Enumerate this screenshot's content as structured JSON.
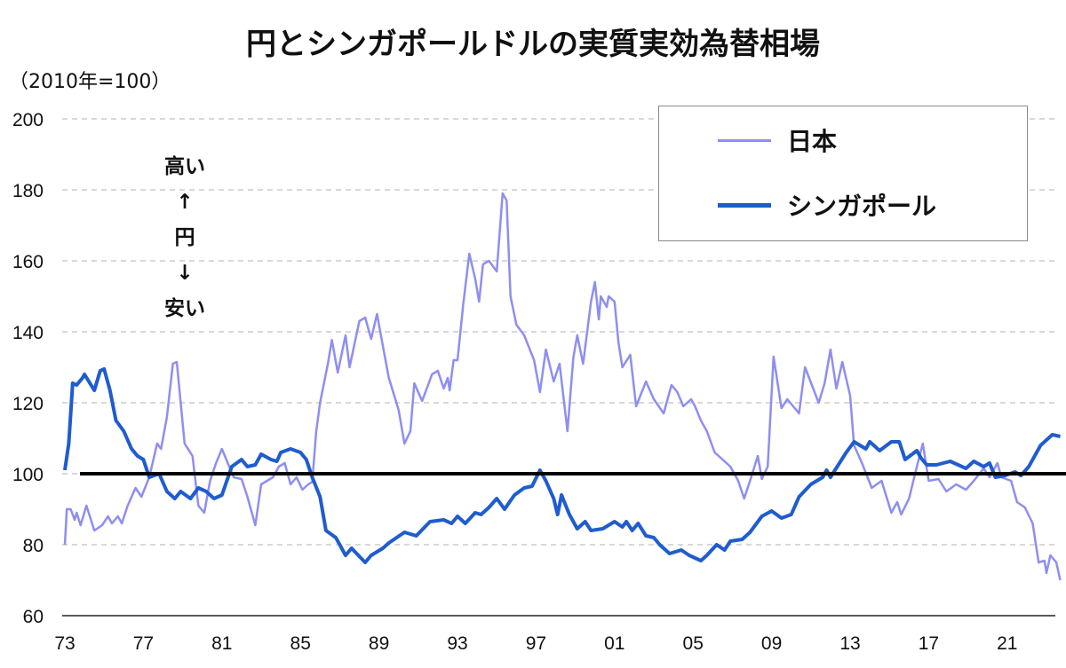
{
  "title": "円とシンガポールドルの実質実効為替相場",
  "unit_label": "（2010年=100）",
  "annotation": {
    "top": "高い",
    "arrow_up": "↑",
    "middle": "円",
    "arrow_down": "↓",
    "bottom": "安い"
  },
  "colors": {
    "japan": "#8e8ef2",
    "singapore": "#1f5ccf",
    "reference": "#000000",
    "grid": "#b0b0b0"
  },
  "chart_data": {
    "type": "line",
    "title": "円とシンガポールドルの実質実効為替相場",
    "ylabel": "（2010年=100）",
    "ylim": [
      60,
      200
    ],
    "yticks": [
      60,
      80,
      100,
      120,
      140,
      160,
      180,
      200
    ],
    "xlim": [
      1973,
      2023.8
    ],
    "xticks": [
      {
        "year": 1973,
        "label": "73"
      },
      {
        "year": 1977,
        "label": "77"
      },
      {
        "year": 1981,
        "label": "81"
      },
      {
        "year": 1985,
        "label": "85"
      },
      {
        "year": 1989,
        "label": "89"
      },
      {
        "year": 1993,
        "label": "93"
      },
      {
        "year": 1997,
        "label": "97"
      },
      {
        "year": 2001,
        "label": "01"
      },
      {
        "year": 2005,
        "label": "05"
      },
      {
        "year": 2009,
        "label": "09"
      },
      {
        "year": 2013,
        "label": "13"
      },
      {
        "year": 2017,
        "label": "17"
      },
      {
        "year": 2021,
        "label": "21"
      }
    ],
    "grid": "horizontal-dashed",
    "legend_position": "top-right",
    "reference_line": {
      "value": 100
    },
    "series": [
      {
        "name": "日本",
        "key": "japan",
        "points": [
          [
            1973.0,
            80
          ],
          [
            1973.1,
            90
          ],
          [
            1973.3,
            90
          ],
          [
            1973.5,
            87
          ],
          [
            1973.6,
            89
          ],
          [
            1973.8,
            85.5
          ],
          [
            1974.1,
            91
          ],
          [
            1974.5,
            84
          ],
          [
            1974.9,
            85.5
          ],
          [
            1975.2,
            88
          ],
          [
            1975.4,
            86
          ],
          [
            1975.7,
            88
          ],
          [
            1975.9,
            86
          ],
          [
            1976.2,
            91
          ],
          [
            1976.6,
            96
          ],
          [
            1976.9,
            93.5
          ],
          [
            1977.3,
            99
          ],
          [
            1977.7,
            108.5
          ],
          [
            1977.9,
            107
          ],
          [
            1978.2,
            116
          ],
          [
            1978.5,
            131
          ],
          [
            1978.7,
            131.5
          ],
          [
            1979.1,
            108.5
          ],
          [
            1979.5,
            105
          ],
          [
            1979.8,
            91
          ],
          [
            1980.1,
            89
          ],
          [
            1980.4,
            98
          ],
          [
            1980.7,
            103
          ],
          [
            1981.0,
            107
          ],
          [
            1981.3,
            103
          ],
          [
            1981.6,
            99
          ],
          [
            1982.0,
            98.5
          ],
          [
            1982.3,
            93.5
          ],
          [
            1982.7,
            85.5
          ],
          [
            1983.0,
            97
          ],
          [
            1983.3,
            98
          ],
          [
            1983.6,
            99
          ],
          [
            1983.9,
            102
          ],
          [
            1984.2,
            103
          ],
          [
            1984.5,
            97
          ],
          [
            1984.8,
            99
          ],
          [
            1985.1,
            95.5
          ],
          [
            1985.4,
            97
          ],
          [
            1985.6,
            97.7
          ],
          [
            1985.8,
            111.8
          ],
          [
            1986.0,
            120
          ],
          [
            1986.4,
            131
          ],
          [
            1986.6,
            137.7
          ],
          [
            1986.9,
            128.5
          ],
          [
            1987.3,
            139
          ],
          [
            1987.5,
            130
          ],
          [
            1988.0,
            143
          ],
          [
            1988.3,
            144
          ],
          [
            1988.6,
            138
          ],
          [
            1988.9,
            145
          ],
          [
            1989.2,
            136
          ],
          [
            1989.5,
            127
          ],
          [
            1990.0,
            118
          ],
          [
            1990.3,
            108.5
          ],
          [
            1990.6,
            112
          ],
          [
            1990.8,
            125.5
          ],
          [
            1991.2,
            120.5
          ],
          [
            1991.7,
            128
          ],
          [
            1992.0,
            129
          ],
          [
            1992.3,
            124
          ],
          [
            1992.5,
            127
          ],
          [
            1992.6,
            123.5
          ],
          [
            1992.8,
            132
          ],
          [
            1993.0,
            132
          ],
          [
            1993.3,
            148
          ],
          [
            1993.6,
            162
          ],
          [
            1993.9,
            155
          ],
          [
            1994.1,
            148.5
          ],
          [
            1994.3,
            159
          ],
          [
            1994.6,
            160
          ],
          [
            1995.0,
            157
          ],
          [
            1995.3,
            179
          ],
          [
            1995.5,
            177
          ],
          [
            1995.7,
            150
          ],
          [
            1996.0,
            142
          ],
          [
            1996.4,
            139
          ],
          [
            1996.9,
            132
          ],
          [
            1997.2,
            123
          ],
          [
            1997.5,
            135
          ],
          [
            1997.9,
            126
          ],
          [
            1998.2,
            131
          ],
          [
            1998.6,
            112
          ],
          [
            1998.9,
            132.7
          ],
          [
            1999.1,
            139
          ],
          [
            1999.4,
            131
          ],
          [
            1999.8,
            148.5
          ],
          [
            2000.0,
            154
          ],
          [
            2000.2,
            143.5
          ],
          [
            2000.3,
            150
          ],
          [
            2000.6,
            147
          ],
          [
            2000.7,
            150
          ],
          [
            2001.0,
            148.5
          ],
          [
            2001.2,
            137
          ],
          [
            2001.4,
            130
          ],
          [
            2001.8,
            133.5
          ],
          [
            2002.1,
            119
          ],
          [
            2002.6,
            126
          ],
          [
            2003.0,
            121
          ],
          [
            2003.5,
            117
          ],
          [
            2003.9,
            125
          ],
          [
            2004.2,
            123
          ],
          [
            2004.5,
            119
          ],
          [
            2004.9,
            121
          ],
          [
            2005.1,
            119
          ],
          [
            2005.4,
            115
          ],
          [
            2005.7,
            112
          ],
          [
            2006.1,
            106
          ],
          [
            2006.5,
            104
          ],
          [
            2006.9,
            102
          ],
          [
            2007.3,
            98
          ],
          [
            2007.6,
            93
          ],
          [
            2007.9,
            98
          ],
          [
            2008.3,
            105
          ],
          [
            2008.5,
            98.5
          ],
          [
            2008.8,
            102
          ],
          [
            2009.1,
            133
          ],
          [
            2009.5,
            118.5
          ],
          [
            2009.8,
            121
          ],
          [
            2010.4,
            117
          ],
          [
            2010.7,
            130
          ],
          [
            2011.4,
            120
          ],
          [
            2011.7,
            125.5
          ],
          [
            2012.0,
            135
          ],
          [
            2012.3,
            124
          ],
          [
            2012.6,
            131.5
          ],
          [
            2013.0,
            122
          ],
          [
            2013.2,
            108
          ],
          [
            2013.6,
            103
          ],
          [
            2014.1,
            96
          ],
          [
            2014.6,
            98
          ],
          [
            2015.1,
            89
          ],
          [
            2015.4,
            92
          ],
          [
            2015.6,
            88.5
          ],
          [
            2016.0,
            93
          ],
          [
            2016.4,
            102
          ],
          [
            2016.7,
            108.5
          ],
          [
            2017.0,
            98
          ],
          [
            2017.5,
            98.5
          ],
          [
            2017.9,
            95
          ],
          [
            2018.4,
            97
          ],
          [
            2018.9,
            95.5
          ],
          [
            2019.3,
            98
          ],
          [
            2019.8,
            101.5
          ],
          [
            2020.1,
            99
          ],
          [
            2020.5,
            103
          ],
          [
            2020.7,
            99
          ],
          [
            2021.2,
            98
          ],
          [
            2021.5,
            92
          ],
          [
            2021.9,
            90.5
          ],
          [
            2022.3,
            86
          ],
          [
            2022.6,
            75
          ],
          [
            2022.9,
            75.5
          ],
          [
            2023.0,
            72
          ],
          [
            2023.2,
            77
          ],
          [
            2023.5,
            75
          ],
          [
            2023.7,
            70
          ]
        ]
      },
      {
        "name": "シンガポール",
        "key": "singapore",
        "points": [
          [
            1973.0,
            101
          ],
          [
            1973.2,
            108.5
          ],
          [
            1973.4,
            125.5
          ],
          [
            1973.6,
            125
          ],
          [
            1973.9,
            127
          ],
          [
            1974.0,
            128
          ],
          [
            1974.5,
            123.5
          ],
          [
            1974.8,
            129
          ],
          [
            1975.0,
            129.5
          ],
          [
            1975.3,
            123.5
          ],
          [
            1975.6,
            115
          ],
          [
            1976.0,
            112
          ],
          [
            1976.4,
            107
          ],
          [
            1976.7,
            105
          ],
          [
            1977.0,
            104
          ],
          [
            1977.3,
            99
          ],
          [
            1977.8,
            100
          ],
          [
            1978.2,
            95
          ],
          [
            1978.6,
            93
          ],
          [
            1978.9,
            95
          ],
          [
            1979.4,
            93
          ],
          [
            1979.8,
            96
          ],
          [
            1980.2,
            95
          ],
          [
            1980.6,
            93
          ],
          [
            1981.0,
            94
          ],
          [
            1981.5,
            102
          ],
          [
            1982.0,
            104
          ],
          [
            1982.3,
            102
          ],
          [
            1982.7,
            102.5
          ],
          [
            1983.0,
            105.5
          ],
          [
            1983.5,
            104
          ],
          [
            1983.8,
            103.5
          ],
          [
            1984.0,
            106
          ],
          [
            1984.5,
            107
          ],
          [
            1985.0,
            106
          ],
          [
            1985.3,
            104
          ],
          [
            1985.6,
            99
          ],
          [
            1986.0,
            93.5
          ],
          [
            1986.3,
            84
          ],
          [
            1986.8,
            82
          ],
          [
            1987.3,
            77
          ],
          [
            1987.6,
            79
          ],
          [
            1988.3,
            75
          ],
          [
            1988.6,
            77
          ],
          [
            1989.2,
            79
          ],
          [
            1989.5,
            80.5
          ],
          [
            1990.3,
            83.5
          ],
          [
            1990.9,
            82.5
          ],
          [
            1991.6,
            86.5
          ],
          [
            1992.3,
            87
          ],
          [
            1992.7,
            86
          ],
          [
            1993.0,
            88
          ],
          [
            1993.4,
            86
          ],
          [
            1993.9,
            89
          ],
          [
            1994.2,
            88.5
          ],
          [
            1994.6,
            90.5
          ],
          [
            1995.0,
            93
          ],
          [
            1995.4,
            90
          ],
          [
            1995.9,
            94
          ],
          [
            1996.4,
            96
          ],
          [
            1996.8,
            96.5
          ],
          [
            1997.2,
            101
          ],
          [
            1997.5,
            98
          ],
          [
            1997.9,
            93
          ],
          [
            1998.1,
            88.5
          ],
          [
            1998.3,
            94
          ],
          [
            1998.7,
            88.5
          ],
          [
            1999.1,
            84.5
          ],
          [
            1999.5,
            86.5
          ],
          [
            1999.8,
            84
          ],
          [
            2000.4,
            84.5
          ],
          [
            2001.0,
            86.5
          ],
          [
            2001.4,
            85
          ],
          [
            2001.6,
            86.5
          ],
          [
            2001.9,
            84
          ],
          [
            2002.2,
            86
          ],
          [
            2002.6,
            82.5
          ],
          [
            2003.0,
            82
          ],
          [
            2003.3,
            80
          ],
          [
            2003.8,
            77.5
          ],
          [
            2004.4,
            78.5
          ],
          [
            2004.8,
            77
          ],
          [
            2005.4,
            75.5
          ],
          [
            2005.7,
            77
          ],
          [
            2006.2,
            80
          ],
          [
            2006.6,
            78.5
          ],
          [
            2006.9,
            81
          ],
          [
            2007.5,
            81.5
          ],
          [
            2007.9,
            83.5
          ],
          [
            2008.5,
            88
          ],
          [
            2009.0,
            89.5
          ],
          [
            2009.5,
            87.5
          ],
          [
            2010.0,
            88.5
          ],
          [
            2010.4,
            93.5
          ],
          [
            2011.0,
            97
          ],
          [
            2011.6,
            99
          ],
          [
            2011.8,
            101
          ],
          [
            2012.0,
            99
          ],
          [
            2012.4,
            102.5
          ],
          [
            2012.8,
            106
          ],
          [
            2013.2,
            109
          ],
          [
            2013.8,
            107
          ],
          [
            2014.0,
            109
          ],
          [
            2014.5,
            106.5
          ],
          [
            2015.1,
            109
          ],
          [
            2015.5,
            109
          ],
          [
            2015.8,
            104
          ],
          [
            2016.4,
            106.5
          ],
          [
            2016.6,
            104.5
          ],
          [
            2016.9,
            102.5
          ],
          [
            2017.4,
            102.5
          ],
          [
            2018.1,
            103.5
          ],
          [
            2018.9,
            101.5
          ],
          [
            2019.3,
            103.5
          ],
          [
            2019.8,
            102
          ],
          [
            2020.1,
            103
          ],
          [
            2020.4,
            99
          ],
          [
            2020.9,
            99.5
          ],
          [
            2021.4,
            100.5
          ],
          [
            2021.7,
            99.5
          ],
          [
            2022.1,
            102
          ],
          [
            2022.7,
            108
          ],
          [
            2023.3,
            111
          ],
          [
            2023.7,
            110.5
          ]
        ]
      }
    ]
  }
}
